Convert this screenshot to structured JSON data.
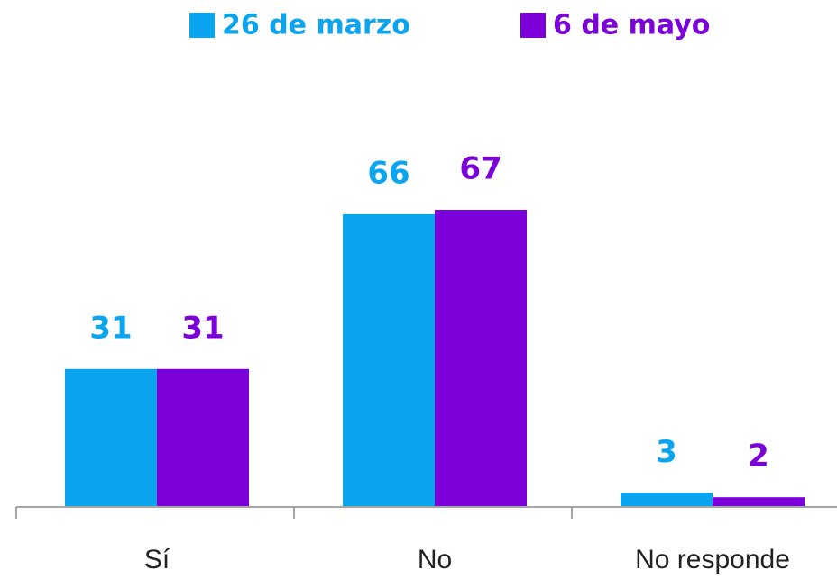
{
  "chart_data": {
    "type": "bar",
    "categories": [
      "Sí",
      "No",
      "No responde"
    ],
    "series": [
      {
        "name": "26 de marzo",
        "color": "#0aa5ee",
        "values": [
          31,
          66,
          3
        ]
      },
      {
        "name": "6 de mayo",
        "color": "#7b00d9",
        "values": [
          31,
          67,
          2
        ]
      }
    ],
    "legend": "top"
  }
}
